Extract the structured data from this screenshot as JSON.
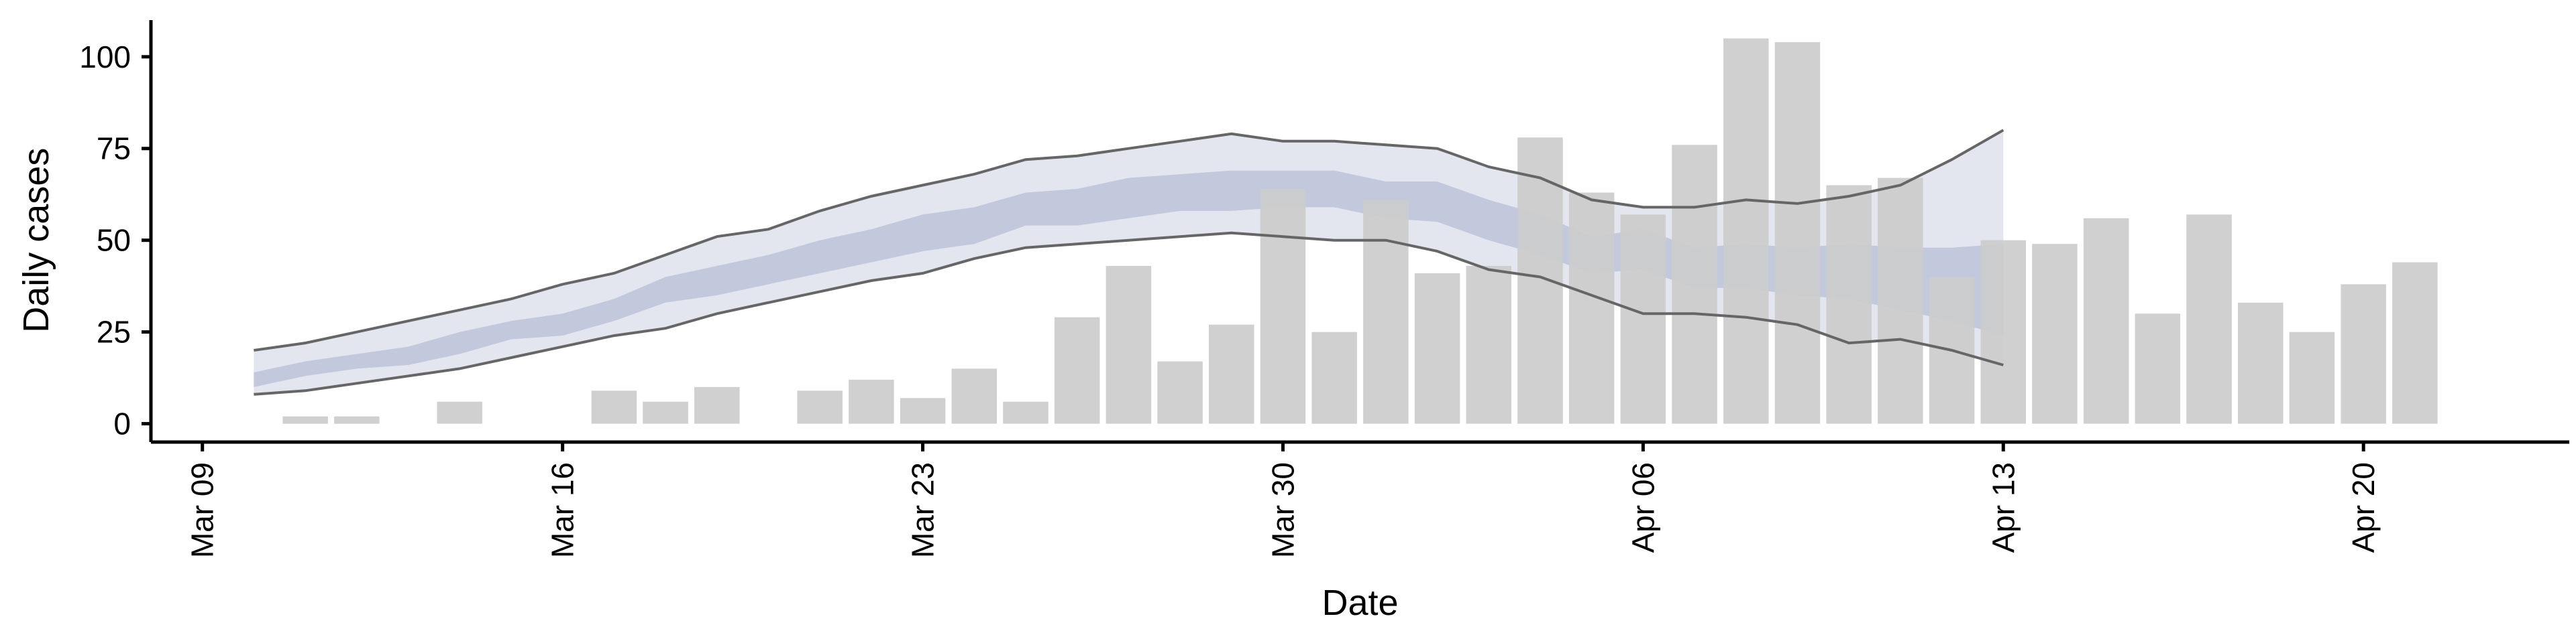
{
  "chart_data": {
    "type": "bar",
    "title": "",
    "xlabel": "Date",
    "ylabel": "Daily cases",
    "x_ticks": [
      "Mar 09",
      "Mar 16",
      "Mar 23",
      "Mar 30",
      "Apr 06",
      "Apr 13",
      "Apr 20"
    ],
    "y_ticks": [
      0,
      25,
      50,
      75,
      100
    ],
    "ylim": [
      -5,
      110
    ],
    "xlim": [
      "2020-03-08",
      "2020-04-24"
    ],
    "colors": {
      "bars": "#cccccc",
      "outer_band": "#e4e6ef",
      "inner_band": "#c3c9dc",
      "bound_lines": "#666666"
    },
    "bars": {
      "name": "Daily cases",
      "x": [
        "2020-03-10",
        "2020-03-11",
        "2020-03-12",
        "2020-03-13",
        "2020-03-14",
        "2020-03-15",
        "2020-03-16",
        "2020-03-17",
        "2020-03-18",
        "2020-03-19",
        "2020-03-20",
        "2020-03-21",
        "2020-03-22",
        "2020-03-23",
        "2020-03-24",
        "2020-03-25",
        "2020-03-26",
        "2020-03-27",
        "2020-03-28",
        "2020-03-29",
        "2020-03-30",
        "2020-03-31",
        "2020-04-01",
        "2020-04-02",
        "2020-04-03",
        "2020-04-04",
        "2020-04-05",
        "2020-04-06",
        "2020-04-07",
        "2020-04-08",
        "2020-04-09",
        "2020-04-10",
        "2020-04-11",
        "2020-04-12",
        "2020-04-13",
        "2020-04-14",
        "2020-04-15",
        "2020-04-16",
        "2020-04-17",
        "2020-04-18",
        "2020-04-19",
        "2020-04-20",
        "2020-04-21",
        "2020-04-22"
      ],
      "values": [
        0,
        2,
        2,
        0,
        6,
        0,
        0,
        9,
        6,
        10,
        0,
        9,
        12,
        7,
        15,
        6,
        29,
        43,
        17,
        27,
        64,
        25,
        61,
        41,
        43,
        78,
        63,
        57,
        76,
        105,
        104,
        65,
        67,
        40,
        50,
        49,
        56,
        30,
        57,
        33,
        25,
        38,
        44,
        0
      ]
    },
    "outer_band": {
      "x": [
        "2020-03-10",
        "2020-03-11",
        "2020-03-12",
        "2020-03-13",
        "2020-03-14",
        "2020-03-15",
        "2020-03-16",
        "2020-03-17",
        "2020-03-18",
        "2020-03-19",
        "2020-03-20",
        "2020-03-21",
        "2020-03-22",
        "2020-03-23",
        "2020-03-24",
        "2020-03-25",
        "2020-03-26",
        "2020-03-27",
        "2020-03-28",
        "2020-03-29",
        "2020-03-30",
        "2020-03-31",
        "2020-04-01",
        "2020-04-02",
        "2020-04-03",
        "2020-04-04",
        "2020-04-05",
        "2020-04-06",
        "2020-04-07",
        "2020-04-08",
        "2020-04-09",
        "2020-04-10",
        "2020-04-11",
        "2020-04-12",
        "2020-04-13"
      ],
      "lower": [
        8,
        9,
        11,
        13,
        15,
        18,
        21,
        24,
        26,
        30,
        33,
        36,
        39,
        41,
        45,
        48,
        49,
        50,
        51,
        52,
        51,
        50,
        50,
        47,
        42,
        40,
        35,
        30,
        30,
        29,
        27,
        22,
        23,
        20,
        16
      ],
      "upper": [
        20,
        22,
        25,
        28,
        31,
        34,
        38,
        41,
        46,
        51,
        53,
        58,
        62,
        65,
        68,
        72,
        73,
        75,
        77,
        79,
        77,
        77,
        76,
        75,
        70,
        67,
        61,
        59,
        59,
        61,
        60,
        62,
        65,
        72,
        80
      ]
    },
    "inner_band": {
      "x": [
        "2020-03-10",
        "2020-03-11",
        "2020-03-12",
        "2020-03-13",
        "2020-03-14",
        "2020-03-15",
        "2020-03-16",
        "2020-03-17",
        "2020-03-18",
        "2020-03-19",
        "2020-03-20",
        "2020-03-21",
        "2020-03-22",
        "2020-03-23",
        "2020-03-24",
        "2020-03-25",
        "2020-03-26",
        "2020-03-27",
        "2020-03-28",
        "2020-03-29",
        "2020-03-30",
        "2020-03-31",
        "2020-04-01",
        "2020-04-02",
        "2020-04-03",
        "2020-04-04",
        "2020-04-05",
        "2020-04-06",
        "2020-04-07",
        "2020-04-08",
        "2020-04-09",
        "2020-04-10",
        "2020-04-11",
        "2020-04-12",
        "2020-04-13"
      ],
      "lower": [
        10,
        13,
        15,
        16,
        19,
        23,
        24,
        28,
        33,
        35,
        38,
        41,
        44,
        47,
        49,
        54,
        54,
        56,
        58,
        58,
        59,
        59,
        56,
        55,
        50,
        46,
        41,
        42,
        37,
        37,
        35,
        34,
        31,
        28,
        24
      ],
      "upper": [
        14,
        17,
        19,
        21,
        25,
        28,
        30,
        34,
        40,
        43,
        46,
        50,
        53,
        57,
        59,
        63,
        64,
        67,
        68,
        69,
        69,
        69,
        66,
        66,
        61,
        57,
        51,
        53,
        48,
        49,
        48,
        49,
        48,
        48,
        49
      ]
    }
  }
}
